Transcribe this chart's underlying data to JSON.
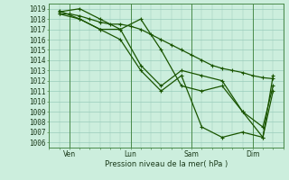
{
  "xlabel": "Pression niveau de la mer( hPa )",
  "bg_color": "#cceedd",
  "grid_color": "#99ccbb",
  "line_color": "#1a5500",
  "ylim": [
    1005.5,
    1019.5
  ],
  "yticks": [
    1006,
    1007,
    1008,
    1009,
    1010,
    1011,
    1012,
    1013,
    1014,
    1015,
    1016,
    1017,
    1018,
    1019
  ],
  "day_labels": [
    "Ven",
    "Lun",
    "Sam",
    "Dim"
  ],
  "day_positions": [
    1,
    4,
    7,
    10
  ],
  "xlim": [
    0,
    11.5
  ],
  "series1": {
    "x": [
      0.5,
      1.0,
      1.5,
      2.0,
      2.5,
      3.0,
      3.5,
      4.0,
      4.5,
      5.0,
      5.5,
      6.0,
      6.5,
      7.0,
      7.5,
      8.0,
      8.5,
      9.0,
      9.5,
      10.0,
      10.5,
      11.0
    ],
    "y": [
      1018.5,
      1018.5,
      1018.3,
      1018.0,
      1017.7,
      1017.5,
      1017.5,
      1017.3,
      1017.0,
      1016.5,
      1016.0,
      1015.5,
      1015.0,
      1014.5,
      1014.0,
      1013.5,
      1013.2,
      1013.0,
      1012.8,
      1012.5,
      1012.3,
      1012.2
    ]
  },
  "series2": {
    "x": [
      0.5,
      1.5,
      2.5,
      3.5,
      4.5,
      5.5,
      6.5,
      7.5,
      8.5,
      9.5,
      10.5,
      11.0
    ],
    "y": [
      1018.7,
      1019.0,
      1018.0,
      1017.0,
      1018.0,
      1015.0,
      1011.5,
      1011.0,
      1011.5,
      1009.0,
      1006.5,
      1011.0
    ]
  },
  "series3": {
    "x": [
      0.5,
      1.5,
      2.5,
      3.5,
      4.5,
      5.5,
      6.5,
      7.5,
      8.5,
      9.5,
      10.5,
      11.0
    ],
    "y": [
      1018.5,
      1018.0,
      1017.0,
      1017.0,
      1013.5,
      1011.5,
      1013.0,
      1012.5,
      1012.0,
      1009.0,
      1007.5,
      1011.5
    ]
  },
  "series4": {
    "x": [
      0.5,
      1.5,
      2.5,
      3.5,
      4.5,
      5.5,
      6.5,
      7.5,
      8.5,
      9.5,
      10.5,
      11.0
    ],
    "y": [
      1018.8,
      1018.0,
      1017.0,
      1016.0,
      1013.0,
      1011.0,
      1012.5,
      1007.5,
      1006.5,
      1007.0,
      1006.5,
      1012.5
    ]
  }
}
